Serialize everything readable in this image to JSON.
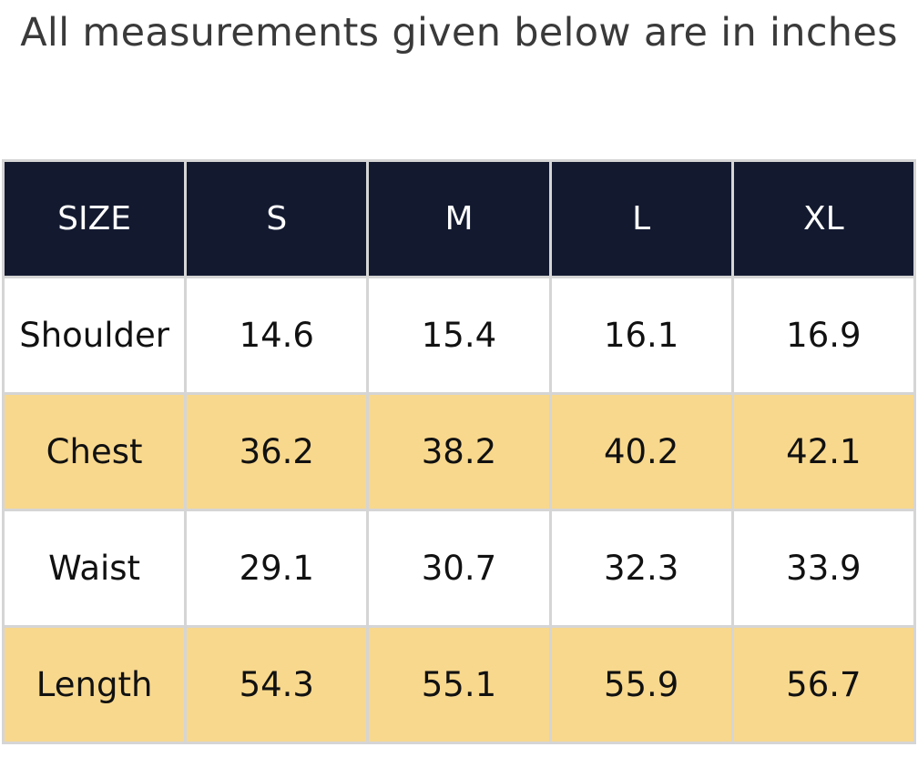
{
  "caption": "All measurements given below are in inches",
  "colors": {
    "header_bg": "#131a30",
    "header_text": "#ffffff",
    "alt_row_bg": "#f8d88d",
    "border": "#d5d5d5"
  },
  "table": {
    "headers": [
      "SIZE",
      "S",
      "M",
      "L",
      "XL"
    ],
    "rows": [
      [
        "Shoulder",
        "14.6",
        "15.4",
        "16.1",
        "16.9"
      ],
      [
        "Chest",
        "36.2",
        "38.2",
        "40.2",
        "42.1"
      ],
      [
        "Waist",
        "29.1",
        "30.7",
        "32.3",
        "33.9"
      ],
      [
        "Length",
        "54.3",
        "55.1",
        "55.9",
        "56.7"
      ]
    ]
  }
}
